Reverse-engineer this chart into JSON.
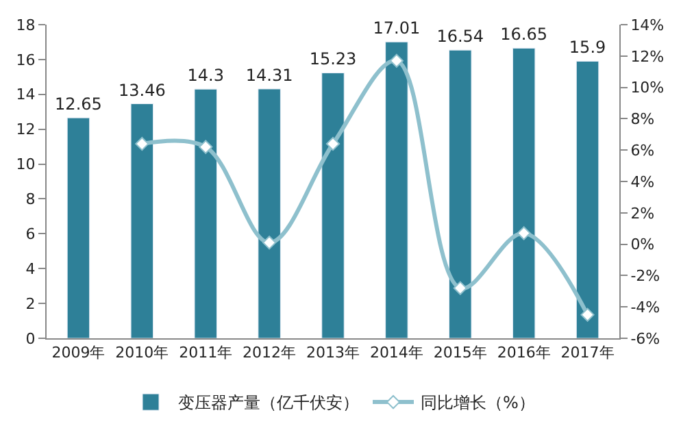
{
  "chart_data": {
    "type": "bar",
    "categories": [
      "2009年",
      "2010年",
      "2011年",
      "2012年",
      "2013年",
      "2014年",
      "2015年",
      "2016年",
      "2017年"
    ],
    "series": [
      {
        "name": "变压器产量（亿千伏安）",
        "color": "#2e8098",
        "values": [
          12.65,
          13.46,
          14.3,
          14.31,
          15.23,
          17.01,
          16.54,
          16.65,
          15.9
        ],
        "data_labels": true
      },
      {
        "name": "同比增长（%）",
        "type": "line",
        "axis": "y2",
        "color": "#8ec0cd",
        "marker": "diamond",
        "values": [
          null,
          6.4,
          6.2,
          0.1,
          6.4,
          11.7,
          -2.8,
          0.7,
          -4.5
        ]
      }
    ],
    "ylim": [
      0,
      18
    ],
    "yticks": [
      0,
      2,
      4,
      6,
      8,
      10,
      12,
      14,
      16,
      18
    ],
    "y2lim": [
      -6,
      14
    ],
    "y2ticks": [
      {
        "value": -6,
        "label": "-6%"
      },
      {
        "value": -4,
        "label": "-4%"
      },
      {
        "value": -2,
        "label": "-2%"
      },
      {
        "value": 0,
        "label": "0%"
      },
      {
        "value": 2,
        "label": "2%"
      },
      {
        "value": 4,
        "label": "4%"
      },
      {
        "value": 6,
        "label": "6%"
      },
      {
        "value": 8,
        "label": "8%"
      },
      {
        "value": 10,
        "label": "10%"
      },
      {
        "value": 12,
        "label": "12%"
      },
      {
        "value": 14,
        "label": "14%"
      }
    ],
    "legend": "bottom"
  }
}
